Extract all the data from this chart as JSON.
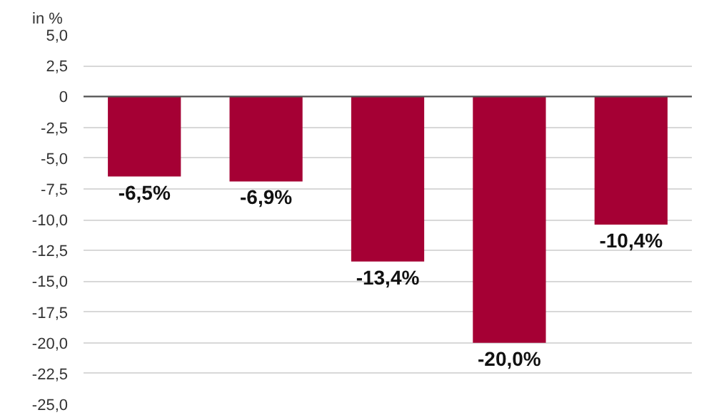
{
  "chart_data": {
    "type": "bar",
    "ylabel": "in %",
    "categories": [
      null,
      null,
      null,
      null,
      null
    ],
    "values": [
      -6.5,
      -6.9,
      -13.4,
      -20.0,
      -10.4
    ],
    "color": "#a50034",
    "value_labels": [
      "-6,5%",
      "-6,9%",
      "-13,4%",
      "-20,0%",
      "-10,4%"
    ],
    "ylim": [
      -25,
      5
    ],
    "yticks": [
      {
        "value": 5,
        "label": "5,0"
      },
      {
        "value": 2.5,
        "label": "2,5"
      },
      0,
      {
        "value": -2.5,
        "label": "-2,5"
      },
      {
        "value": -5,
        "label": "-5,0"
      },
      {
        "value": -7.5,
        "label": "-7,5"
      },
      {
        "value": -10,
        "label": "-10,0"
      },
      {
        "value": -12.5,
        "label": "-12,5"
      },
      {
        "value": -15,
        "label": "-15,0"
      },
      {
        "value": -17.5,
        "label": "-17,5"
      },
      {
        "value": -20,
        "label": "-20,0"
      },
      {
        "value": -22.5,
        "label": "-22,5"
      },
      {
        "value": -25,
        "label": "-25,0"
      }
    ],
    "grid": "y"
  }
}
